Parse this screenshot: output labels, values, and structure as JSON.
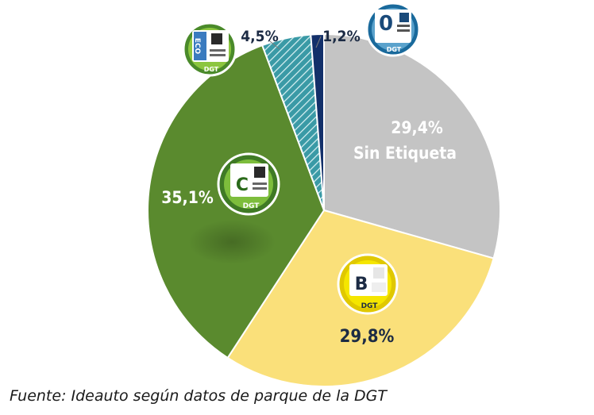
{
  "chart_data": {
    "type": "pie",
    "title": "",
    "slices": [
      {
        "category": "Sin Etiqueta",
        "value": 29.4,
        "label": "29,4%",
        "color": "#c4c4c4"
      },
      {
        "category": "B",
        "value": 29.8,
        "label": "29,8%",
        "color": "#fae07a"
      },
      {
        "category": "C",
        "value": 35.1,
        "label": "35,1%",
        "color": "#5a8a2e"
      },
      {
        "category": "ECO",
        "value": 4.5,
        "label": "4,5%",
        "color": "#3a9aa6"
      },
      {
        "category": "0",
        "value": 1.2,
        "label": "1,2%",
        "color": "#13306a"
      }
    ],
    "start_angle_deg": 0,
    "direction": "clockwise"
  },
  "badges": {
    "zero": {
      "letter": "0",
      "brand": "DGT"
    },
    "eco": {
      "text": "ECO",
      "brand": "DGT"
    },
    "c": {
      "letter": "C",
      "brand": "DGT"
    },
    "b": {
      "letter": "B",
      "brand": "DGT"
    }
  },
  "footer": {
    "source": "Fuente: Ideauto según datos de parque de la DGT"
  }
}
